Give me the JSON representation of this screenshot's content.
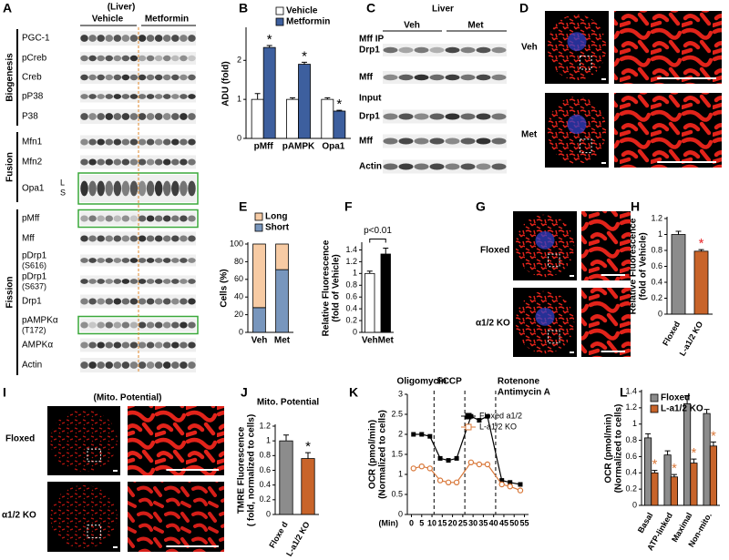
{
  "panel_a": {
    "label": "A",
    "title": "(Liver)",
    "groups": [
      "Vehicle",
      "Metformin"
    ],
    "sections": [
      {
        "name": "Biogenesis",
        "rows": [
          [
            "PGC-1"
          ],
          [
            "pCreb"
          ],
          [
            "Creb"
          ],
          [
            "pP38"
          ],
          [
            "P38"
          ]
        ]
      },
      {
        "name": "Fusion",
        "rows": [
          [
            "Mfn1"
          ],
          [
            "Mfn2"
          ],
          [
            "Opa1"
          ]
        ]
      },
      {
        "name": "Fission",
        "rows": [
          [
            "pMff"
          ],
          [
            "Mff"
          ],
          [
            "pDrp1",
            "(S616)"
          ],
          [
            "pDrp1",
            "(S637)"
          ],
          [
            "Drp1"
          ],
          [
            "pAMPKα",
            "(T172)"
          ],
          [
            "AMPKα"
          ],
          [
            "Actin"
          ]
        ]
      }
    ],
    "opa1_marks": [
      "L",
      "S"
    ]
  },
  "panel_c": {
    "label": "C",
    "title": "Liver",
    "groups": [
      "Veh",
      "Met"
    ],
    "ip_label": "Mff IP",
    "ip_rows": [
      "Drp1",
      "Mff"
    ],
    "input_label": "Input",
    "input_rows": [
      "Drp1",
      "Mff",
      "Actin"
    ]
  },
  "panel_d": {
    "label": "D",
    "rows": [
      "Veh",
      "Met"
    ]
  },
  "panel_g": {
    "label": "G",
    "rows": [
      "Floxed",
      "α1/2 KO"
    ]
  },
  "panel_i": {
    "label": "I",
    "title": "(Mito. Potential)",
    "rows": [
      "Floxed",
      "α1/2 KO"
    ]
  },
  "chart_data": [
    {
      "panel": "B",
      "type": "bar",
      "ylabel": [
        "ADU (fold)"
      ],
      "categories": [
        "pMff",
        "pAMPK",
        "Opa1"
      ],
      "series": [
        {
          "name": "Vehicle",
          "color": "#ffffff",
          "values": [
            1,
            1,
            1
          ],
          "errors": [
            0.15,
            0.04,
            0.04
          ]
        },
        {
          "name": "Metformin",
          "color": "#3d5f9e",
          "values": [
            2.33,
            1.9,
            0.7
          ],
          "errors": [
            0.05,
            0.05,
            0.02
          ]
        }
      ],
      "ylim": [
        0,
        2.8
      ],
      "yticks": [
        0,
        1,
        2
      ],
      "annotations": [
        "*",
        "*",
        "*"
      ],
      "annotation_color": "#000000"
    },
    {
      "panel": "E",
      "type": "bar",
      "stacked": true,
      "ylabel": [
        "Cells (%)"
      ],
      "categories": [
        "Veh",
        "Met"
      ],
      "series": [
        {
          "name": "Long",
          "color": "#f7cba4",
          "values": [
            72,
            29
          ]
        },
        {
          "name": "Short",
          "color": "#7896bd",
          "values": [
            28,
            71
          ],
          "errors": [
            5,
            1
          ]
        }
      ],
      "ylim": [
        0,
        100
      ],
      "yticks": [
        0,
        20,
        40,
        60,
        80,
        100
      ]
    },
    {
      "panel": "F",
      "type": "bar",
      "ylabel": [
        "Relative Fluorescence",
        "(fold of Vehicle)"
      ],
      "categories": [
        "Veh",
        "Met"
      ],
      "values": [
        1,
        1.33
      ],
      "errors": [
        0.04,
        0.1
      ],
      "colors": [
        "#ffffff",
        "#000000"
      ],
      "ylim": [
        0,
        1.5
      ],
      "yticks": [
        0,
        0.2,
        0.4,
        0.6,
        0.8,
        1,
        1.2,
        1.4
      ],
      "bracket_label": "p<0.01"
    },
    {
      "panel": "H",
      "type": "bar",
      "ylabel": [
        "Relative Fluorescence",
        "(fold of Vehicle)"
      ],
      "categories": [
        "Floxed",
        "L-a1/2 KO"
      ],
      "values": [
        1,
        0.79
      ],
      "errors": [
        0.04,
        0.02
      ],
      "colors": [
        "#8c8c8c",
        "#c8642a"
      ],
      "ylim": [
        0,
        1.2
      ],
      "yticks": [
        0,
        0.2,
        0.4,
        0.6,
        0.8,
        1,
        1.2
      ],
      "annotations": [
        null,
        "*"
      ],
      "annotation_color": "#e8262a"
    },
    {
      "panel": "J",
      "type": "bar",
      "title": "Mito. Potential",
      "ylabel": [
        "TMRE Fluorescence",
        "( fold, normalized to cells)"
      ],
      "categories": [
        "Floxe d",
        "L-a1/2 KO"
      ],
      "values": [
        1,
        0.76
      ],
      "errors": [
        0.08,
        0.08
      ],
      "colors": [
        "#8c8c8c",
        "#c8642a"
      ],
      "ylim": [
        0,
        1.2
      ],
      "yticks": [
        0,
        0.2,
        0.4,
        0.6,
        0.8,
        1,
        1.2
      ],
      "annotations": [
        null,
        "*"
      ],
      "annotation_color": "#000000"
    },
    {
      "panel": "K",
      "type": "line",
      "ylabel": [
        "OCR (pmol/min)",
        "(Normalized to cells)"
      ],
      "xlabel": "(Min)",
      "x": [
        1,
        5,
        9,
        14,
        18,
        22,
        29,
        33,
        37,
        44,
        48,
        53
      ],
      "series": [
        {
          "name": "Floxed a1/2",
          "color": "#000000",
          "values": [
            2.0,
            2.0,
            1.95,
            1.4,
            1.35,
            1.4,
            2.45,
            2.35,
            2.45,
            0.85,
            0.8,
            0.75
          ]
        },
        {
          "name": "L-a1/2 KO",
          "color": "#d9783a",
          "values": [
            1.15,
            1.2,
            1.15,
            0.85,
            0.8,
            0.8,
            1.3,
            1.25,
            1.25,
            0.75,
            0.7,
            0.6
          ]
        }
      ],
      "xlim": [
        -2,
        57
      ],
      "xticks": [
        0,
        5,
        10,
        15,
        20,
        25,
        30,
        35,
        40,
        45,
        50,
        55
      ],
      "ylim": [
        0,
        3
      ],
      "yticks": [
        0,
        0.5,
        1,
        1.5,
        2,
        2.5,
        3
      ],
      "vlines": [
        11,
        26,
        41
      ],
      "vline_labels": [
        "Oligomycin",
        "FCCP",
        "Rotenone",
        "Antimycin A"
      ]
    },
    {
      "panel": "L",
      "type": "bar",
      "ylabel": [
        "OCR (pmol/min)",
        "(Normalized to cells)"
      ],
      "categories": [
        "Basal",
        "ATP-linked",
        "Maximal",
        "Non-mito."
      ],
      "series": [
        {
          "name": "Floxed",
          "color": "#8c8c8c",
          "values": [
            0.83,
            0.62,
            1.25,
            1.13
          ],
          "errors": [
            0.05,
            0.05,
            0.1,
            0.05
          ]
        },
        {
          "name": "L-a1/2 KO",
          "color": "#c8642a",
          "values": [
            0.4,
            0.35,
            0.52,
            0.73
          ],
          "errors": [
            0.03,
            0.03,
            0.05,
            0.05
          ]
        }
      ],
      "ylim": [
        0,
        1.4
      ],
      "yticks": [
        0,
        0.2,
        0.4,
        0.6,
        0.8,
        1,
        1.2,
        1.4
      ],
      "annotations": [
        "*",
        "*",
        "*",
        "*"
      ],
      "annotation_color": "#d9783a"
    }
  ]
}
